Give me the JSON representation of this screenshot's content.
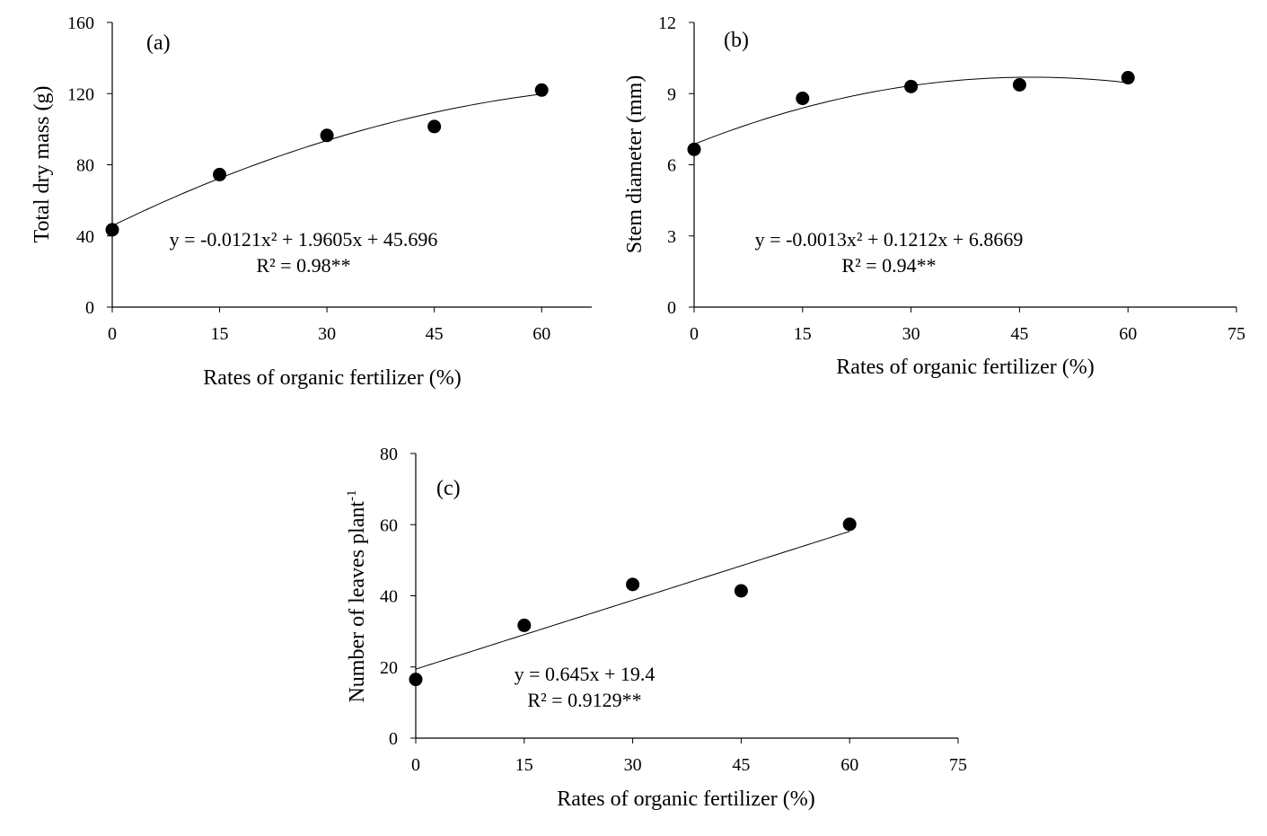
{
  "chart_data": [
    {
      "type": "scatter",
      "panel_label": "(a)",
      "xlabel": "Rates of organic fertilizer (%)",
      "ylabel": "Total dry mass (g)",
      "xlim": [
        0,
        67
      ],
      "ylim": [
        0,
        160
      ],
      "xticks": [
        0,
        15,
        30,
        45,
        60
      ],
      "yticks": [
        0,
        40,
        80,
        120,
        160
      ],
      "x": [
        0,
        15,
        30,
        45,
        60
      ],
      "y": [
        43.5,
        74.5,
        96.5,
        101.5,
        122.0
      ],
      "trendline": {
        "kind": "quadratic",
        "a": -0.0121,
        "b": 1.9605,
        "c": 45.696
      },
      "equation": "y = -0.0121x² + 1.9605x + 45.696",
      "r2": "R² = 0.98**",
      "grid": false
    },
    {
      "type": "scatter",
      "panel_label": "(b)",
      "xlabel": "Rates of organic fertilizer (%)",
      "ylabel": "Stem diameter (mm)",
      "xlim": [
        0,
        75
      ],
      "ylim": [
        0,
        12
      ],
      "xticks": [
        0,
        15,
        30,
        45,
        60,
        75
      ],
      "yticks": [
        0,
        3,
        6,
        9,
        12
      ],
      "x": [
        0,
        15,
        30,
        45,
        60
      ],
      "y": [
        6.65,
        8.8,
        9.3,
        9.37,
        9.67
      ],
      "trendline": {
        "kind": "quadratic",
        "a": -0.0013,
        "b": 0.1212,
        "c": 6.8669
      },
      "equation": "y = -0.0013x² + 0.1212x + 6.8669",
      "r2": "R² = 0.94**",
      "grid": false
    },
    {
      "type": "scatter",
      "panel_label": "(c)",
      "xlabel": "Rates of organic fertilizer (%)",
      "ylabel": "Number of leaves plant",
      "ylabel_sup": "-1",
      "xlim": [
        0,
        75
      ],
      "ylim": [
        0,
        80
      ],
      "xticks": [
        0,
        15,
        30,
        45,
        60,
        75
      ],
      "yticks": [
        0,
        20,
        40,
        60,
        80
      ],
      "x": [
        0,
        15,
        30,
        45,
        60
      ],
      "y": [
        16.5,
        31.7,
        43.2,
        41.4,
        60.1
      ],
      "trendline": {
        "kind": "linear",
        "a": 0,
        "b": 0.645,
        "c": 19.4
      },
      "equation": "y = 0.645x + 19.4",
      "r2": "R² = 0.9129**",
      "grid": false
    }
  ]
}
